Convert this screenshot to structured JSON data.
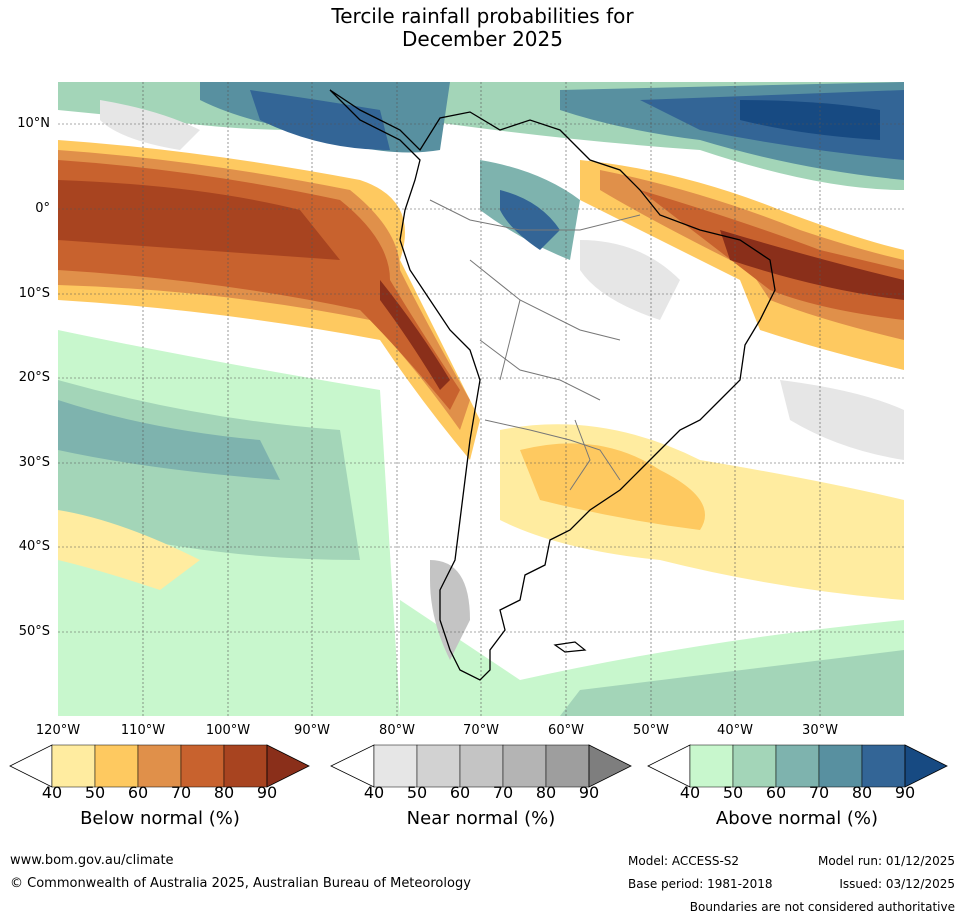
{
  "title_line1": "Tercile rainfall probabilities for",
  "title_line2": "December 2025",
  "lat_labels": [
    "10°N",
    "0°",
    "10°S",
    "20°S",
    "30°S",
    "40°S",
    "50°S"
  ],
  "lon_labels": [
    "120°W",
    "110°W",
    "100°W",
    "90°W",
    "80°W",
    "70°W",
    "60°W",
    "50°W",
    "40°W",
    "30°W"
  ],
  "colorbars": {
    "below": {
      "title": "Below normal (%)",
      "ticks": [
        "40",
        "50",
        "60",
        "70",
        "80",
        "90"
      ],
      "colors": [
        "#ffffff",
        "#ffeca0",
        "#fec960",
        "#e0904a",
        "#c8622e",
        "#a84420",
        "#8a2f1a"
      ]
    },
    "near": {
      "title": "Near normal (%)",
      "ticks": [
        "40",
        "50",
        "60",
        "70",
        "80",
        "90"
      ],
      "colors": [
        "#ffffff",
        "#e6e6e6",
        "#d2d2d2",
        "#c4c4c4",
        "#b4b4b4",
        "#9e9e9e",
        "#7e7e7e"
      ]
    },
    "above": {
      "title": "Above normal (%)",
      "ticks": [
        "40",
        "50",
        "60",
        "70",
        "80",
        "90"
      ],
      "colors": [
        "#ffffff",
        "#c8f7cd",
        "#a3d5b8",
        "#7eb3ae",
        "#5890a0",
        "#336596",
        "#174a82"
      ]
    }
  },
  "footer": {
    "url": "www.bom.gov.au/climate",
    "copyright": "© Commonwealth of Australia 2025, Australian Bureau of Meteorology",
    "model": "Model: ACCESS-S2",
    "model_run": "Model run: 01/12/2025",
    "base_period": "Base period: 1981-2018",
    "issued": "Issued: 03/12/2025",
    "disclaimer": "Boundaries are not considered authoritative"
  }
}
